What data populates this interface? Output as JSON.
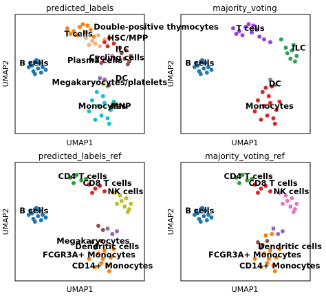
{
  "chart_data": [
    {
      "type": "scatter",
      "title": "predicted_labels",
      "xlabel": "UMAP1",
      "ylabel": "UMAP2",
      "series": [
        {
          "name": "B cells",
          "color": "#1f77b4",
          "x": [
            0.9,
            1.1,
            1.3,
            1.0,
            0.7,
            1.4,
            1.6,
            1.2,
            1.5,
            1.8,
            1.1,
            0.8
          ],
          "y": [
            6.5,
            6.8,
            6.3,
            6.1,
            6.4,
            6.7,
            6.4,
            6.9,
            6.0,
            6.2,
            5.9,
            6.7
          ]
        },
        {
          "name": "Double-positive thymocytes",
          "color": "#ff7f0e",
          "x": [
            3.2,
            3.6,
            4.0,
            4.4,
            3.8,
            4.2,
            4.7,
            3.4,
            4.9,
            4.5
          ],
          "y": [
            9.2,
            9.0,
            9.3,
            8.9,
            8.7,
            9.5,
            9.1,
            8.8,
            8.6,
            9.4
          ]
        },
        {
          "name": "T cells",
          "color": "#f5b07a",
          "x": [
            4.4,
            4.8,
            5.2,
            4.6,
            5.0,
            5.6,
            5.3
          ],
          "y": [
            8.5,
            8.3,
            8.7,
            8.0,
            8.1,
            8.4,
            7.9
          ]
        },
        {
          "name": "HSC/MPP",
          "color": "#d62728",
          "x": [
            5.6,
            5.9,
            6.2,
            5.8
          ],
          "y": [
            8.2,
            8.5,
            8.1,
            7.9
          ]
        },
        {
          "name": "ILC",
          "color": "#8c564b",
          "x": [
            6.6,
            7.0,
            7.3,
            6.9,
            7.2,
            6.7,
            7.1
          ],
          "y": [
            7.8,
            7.6,
            7.2,
            7.0,
            6.8,
            7.4,
            6.6
          ]
        },
        {
          "name": "Plasma cells",
          "color": "#b04a4a",
          "x": [
            4.8,
            5.1,
            5.4
          ],
          "y": [
            6.9,
            7.1,
            6.7
          ]
        },
        {
          "name": "Cycling cells",
          "color": "#e377c2",
          "x": [
            5.6,
            5.9,
            6.1,
            6.3
          ],
          "y": [
            7.0,
            6.8,
            7.2,
            6.9
          ]
        },
        {
          "name": "Megakaryocytes/platelets",
          "color": "#bcbd22",
          "x": [
            5.5,
            5.8
          ],
          "y": [
            5.2,
            5.0
          ]
        },
        {
          "name": "DC",
          "color": "#9467bd",
          "x": [
            5.6,
            5.9,
            5.3
          ],
          "y": [
            5.5,
            5.1,
            5.6
          ]
        },
        {
          "name": "Monocytes",
          "color": "#17becf",
          "x": [
            4.8,
            5.2,
            5.6,
            6.0,
            5.4,
            5.0,
            5.8,
            6.2,
            5.5,
            4.6,
            5.1,
            5.9
          ],
          "y": [
            4.0,
            3.6,
            3.8,
            3.3,
            2.9,
            2.6,
            2.7,
            3.9,
            4.3,
            3.2,
            4.6,
            2.3
          ]
        },
        {
          "name": "MNP",
          "color": "#2ca02c",
          "x": [
            6.0,
            6.3
          ],
          "y": [
            3.5,
            3.7
          ]
        }
      ]
    },
    {
      "type": "scatter",
      "title": "majority_voting",
      "xlabel": "UMAP1",
      "ylabel": "UMAP2",
      "series": [
        {
          "name": "B cells",
          "color": "#1f77b4",
          "x": [
            0.9,
            1.1,
            1.3,
            1.0,
            0.7,
            1.4,
            1.6,
            1.2,
            1.5,
            1.8,
            1.1,
            0.8
          ],
          "y": [
            6.5,
            6.8,
            6.3,
            6.1,
            6.4,
            6.7,
            6.4,
            6.9,
            6.0,
            6.2,
            5.9,
            6.7
          ]
        },
        {
          "name": "T cells",
          "color": "#9a3ee8",
          "x": [
            3.2,
            3.6,
            4.0,
            4.4,
            3.8,
            4.2,
            4.7,
            3.4,
            4.9,
            4.5,
            5.2,
            5.6
          ],
          "y": [
            9.2,
            9.0,
            9.3,
            8.9,
            8.7,
            9.5,
            9.1,
            8.8,
            8.6,
            9.4,
            8.4,
            8.2
          ]
        },
        {
          "name": "ILC",
          "color": "#2ca05a",
          "x": [
            6.3,
            6.6,
            7.0,
            7.3,
            6.9,
            7.2,
            6.7,
            7.1
          ],
          "y": [
            8.4,
            7.8,
            7.6,
            7.2,
            7.0,
            6.8,
            7.4,
            8.0
          ]
        },
        {
          "name": "DC",
          "color": "#8c8c8c",
          "x": [
            5.6,
            5.9
          ],
          "y": [
            5.5,
            5.1
          ]
        },
        {
          "name": "Monocytes",
          "color": "#d62728",
          "x": [
            4.8,
            5.2,
            5.6,
            6.0,
            5.4,
            5.0,
            5.8,
            6.2,
            5.5,
            4.6,
            5.1,
            5.9,
            5.3,
            5.7
          ],
          "y": [
            4.0,
            3.6,
            3.8,
            3.3,
            2.9,
            2.6,
            2.7,
            3.9,
            4.3,
            3.2,
            4.6,
            2.3,
            4.9,
            5.0
          ]
        }
      ]
    },
    {
      "type": "scatter",
      "title": "predicted_labels_ref",
      "xlabel": "UMAP1",
      "ylabel": "UMAP2",
      "series": [
        {
          "name": "B cells",
          "color": "#1f77b4",
          "x": [
            0.9,
            1.1,
            1.3,
            1.0,
            0.7,
            1.4,
            1.6,
            1.2,
            1.5,
            1.8,
            1.1,
            0.8
          ],
          "y": [
            6.5,
            6.8,
            6.3,
            6.1,
            6.4,
            6.7,
            6.4,
            6.9,
            6.0,
            6.2,
            5.9,
            6.7
          ]
        },
        {
          "name": "CD4 T cells",
          "color": "#2ca02c",
          "x": [
            3.4,
            3.8,
            4.1,
            3.6,
            4.4
          ],
          "y": [
            9.1,
            9.3,
            8.9,
            8.7,
            9.0
          ]
        },
        {
          "name": "CD8 T cells",
          "color": "#d62728",
          "x": [
            4.6,
            5.0,
            5.3,
            4.8,
            5.6
          ],
          "y": [
            8.6,
            8.3,
            8.5,
            8.0,
            8.1
          ]
        },
        {
          "name": "NK cells",
          "color": "#bcbd22",
          "x": [
            6.2,
            6.6,
            7.0,
            7.3,
            6.9,
            7.2,
            6.7,
            7.1,
            6.4
          ],
          "y": [
            8.0,
            7.8,
            7.6,
            7.2,
            7.0,
            6.8,
            7.4,
            6.6,
            7.2
          ]
        },
        {
          "name": "Megakaryocytes",
          "color": "#8c564b",
          "x": [
            5.2,
            5.5
          ],
          "y": [
            5.6,
            5.3
          ]
        },
        {
          "name": "Dendritic cells",
          "color": "#9467bd",
          "x": [
            5.8,
            6.1,
            6.4
          ],
          "y": [
            5.4,
            5.0,
            5.2
          ]
        },
        {
          "name": "FCGR3A+ Monocytes",
          "color": "#7f4a3a",
          "x": [
            4.8,
            5.1,
            5.4,
            5.0
          ],
          "y": [
            4.4,
            4.2,
            4.5,
            4.0
          ]
        },
        {
          "name": "CD14+ Monocytes",
          "color": "#ff7f0e",
          "x": [
            5.2,
            5.6,
            6.0,
            5.4,
            5.0,
            5.8,
            6.2,
            5.5,
            4.6,
            5.9
          ],
          "y": [
            3.6,
            3.8,
            3.3,
            2.9,
            2.6,
            2.7,
            3.9,
            3.2,
            3.2,
            2.3
          ]
        }
      ]
    },
    {
      "type": "scatter",
      "title": "majority_voting_ref",
      "xlabel": "UMAP1",
      "ylabel": "UMAP2",
      "series": [
        {
          "name": "B cells",
          "color": "#1f77b4",
          "x": [
            0.9,
            1.1,
            1.3,
            1.0,
            0.7,
            1.4,
            1.6,
            1.2,
            1.5,
            1.8,
            1.1,
            0.8
          ],
          "y": [
            6.5,
            6.8,
            6.3,
            6.1,
            6.4,
            6.7,
            6.4,
            6.9,
            6.0,
            6.2,
            5.9,
            6.7
          ]
        },
        {
          "name": "CD4 T cells",
          "color": "#2ca02c",
          "x": [
            3.4,
            3.8,
            4.1,
            3.6,
            4.4
          ],
          "y": [
            9.1,
            9.3,
            8.9,
            8.7,
            9.0
          ]
        },
        {
          "name": "CD8 T cells",
          "color": "#d62728",
          "x": [
            4.6,
            5.0,
            5.3,
            4.8,
            5.6
          ],
          "y": [
            8.6,
            8.3,
            8.5,
            8.0,
            8.1
          ]
        },
        {
          "name": "NK cells",
          "color": "#e377c2",
          "x": [
            6.2,
            6.6,
            7.0,
            7.3,
            6.9,
            7.2,
            6.7,
            7.1,
            6.4
          ],
          "y": [
            8.0,
            7.8,
            7.6,
            7.2,
            7.0,
            6.8,
            7.4,
            6.6,
            7.2
          ]
        },
        {
          "name": "Dendritic cells",
          "color": "#9467bd",
          "x": [
            5.8,
            6.1,
            6.4
          ],
          "y": [
            5.4,
            5.0,
            5.2
          ]
        },
        {
          "name": "FCGR3A+ Monocytes",
          "color": "#8c564b",
          "x": [
            4.8,
            5.1,
            5.4,
            5.0
          ],
          "y": [
            4.4,
            4.2,
            4.5,
            4.0
          ]
        },
        {
          "name": "CD14+ Monocytes",
          "color": "#ff7f0e",
          "x": [
            5.2,
            5.6,
            6.0,
            5.4,
            5.0,
            5.8,
            6.2,
            5.5,
            4.6,
            5.9,
            5.3,
            5.7
          ],
          "y": [
            3.6,
            3.8,
            3.3,
            2.9,
            2.6,
            2.7,
            3.9,
            3.2,
            3.2,
            2.3,
            4.9,
            5.0
          ]
        }
      ]
    }
  ],
  "labels": [
    [
      {
        "text": "Double-positive thymocytes",
        "x": 4.9,
        "y": 9.1
      },
      {
        "text": "T cells",
        "x": 3.0,
        "y": 8.6
      },
      {
        "text": "HSC/MPP",
        "x": 5.8,
        "y": 8.3
      },
      {
        "text": "B cells",
        "x": 0.1,
        "y": 6.5
      },
      {
        "text": "ILC",
        "x": 6.3,
        "y": 7.5
      },
      {
        "text": "Cycling cells",
        "x": 4.6,
        "y": 6.9
      },
      {
        "text": "Plasma cells",
        "x": 3.2,
        "y": 6.7
      },
      {
        "text": "DC",
        "x": 6.3,
        "y": 5.4
      },
      {
        "text": "Megakaryocytes/platelets",
        "x": 2.2,
        "y": 5.1
      },
      {
        "text": "Monocytes",
        "x": 3.9,
        "y": 3.4
      },
      {
        "text": "MNP",
        "x": 6.0,
        "y": 3.4
      }
    ],
    [
      {
        "text": "T cells",
        "x": 3.4,
        "y": 9.0
      },
      {
        "text": "ILC",
        "x": 7.0,
        "y": 7.6
      },
      {
        "text": "B cells",
        "x": 0.1,
        "y": 6.5
      },
      {
        "text": "DC",
        "x": 5.5,
        "y": 5.0
      },
      {
        "text": "Monocytes",
        "x": 4.0,
        "y": 3.4
      }
    ],
    [
      {
        "text": "CD4 T cells",
        "x": 2.6,
        "y": 9.0
      },
      {
        "text": "CD8 T cells",
        "x": 4.2,
        "y": 8.5
      },
      {
        "text": "NK cells",
        "x": 5.8,
        "y": 7.9
      },
      {
        "text": "B cells",
        "x": 0.1,
        "y": 6.5
      },
      {
        "text": "Megakaryocytes",
        "x": 2.5,
        "y": 4.3
      },
      {
        "text": "Dendritic cells",
        "x": 3.7,
        "y": 3.9
      },
      {
        "text": "FCGR3A+ Monocytes",
        "x": 1.6,
        "y": 3.3
      },
      {
        "text": "CD14+ Monocytes",
        "x": 3.5,
        "y": 2.5
      }
    ],
    [
      {
        "text": "CD4 T cells",
        "x": 2.6,
        "y": 9.0
      },
      {
        "text": "CD8 T cells",
        "x": 4.2,
        "y": 8.5
      },
      {
        "text": "NK cells",
        "x": 5.8,
        "y": 7.9
      },
      {
        "text": "B cells",
        "x": 0.1,
        "y": 6.5
      },
      {
        "text": "Dendritic cells",
        "x": 4.8,
        "y": 3.9
      },
      {
        "text": "FCGR3A+ Monocytes",
        "x": 1.6,
        "y": 3.3
      },
      {
        "text": "CD14+ Monocytes",
        "x": 3.6,
        "y": 2.5
      }
    ]
  ]
}
